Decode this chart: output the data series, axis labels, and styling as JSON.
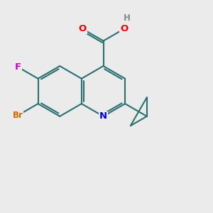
{
  "bg_color": "#ebebeb",
  "bond_color": "#2a7070",
  "atom_colors": {
    "O": "#ee0000",
    "N": "#0000dd",
    "F": "#cc00cc",
    "Br": "#cc6600",
    "H": "#888888",
    "C": "#2a7070"
  },
  "bond_lw": 1.5,
  "figsize": [
    3.0,
    3.0
  ],
  "dpi": 100,
  "xlim": [
    0,
    10
  ],
  "ylim": [
    0,
    10
  ],
  "bl": 1.18
}
